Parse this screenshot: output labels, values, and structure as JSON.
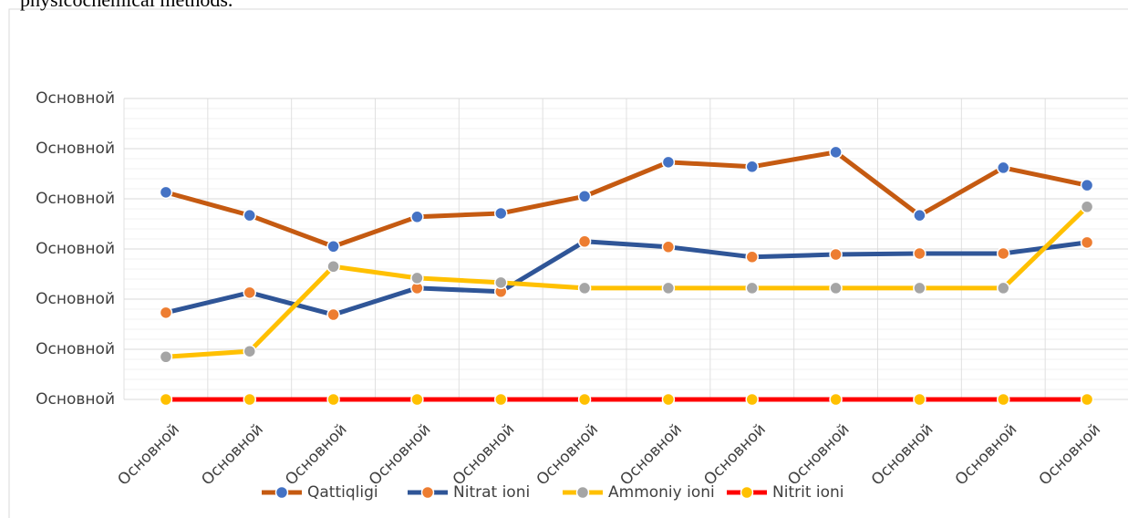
{
  "chart_data": {
    "type": "line",
    "caption_text": "physicochemical methods.",
    "categories": [
      "Основной",
      "Основной",
      "Основной",
      "Основной",
      "Основной",
      "Основной",
      "Основной",
      "Основной",
      "Основной",
      "Основной",
      "Основной",
      "Основной"
    ],
    "series": [
      {
        "name": "Qattiqligi",
        "color": "#c55a11",
        "marker_color": "#4472c4",
        "values": [
          4.13,
          3.67,
          3.05,
          3.64,
          3.71,
          4.05,
          4.73,
          4.64,
          4.93,
          3.67,
          4.62,
          4.27
        ]
      },
      {
        "name": "Nitrat ioni",
        "color": "#2f5597",
        "marker_color": "#ed7d31",
        "values": [
          1.73,
          2.13,
          1.69,
          2.22,
          2.15,
          3.15,
          3.04,
          2.84,
          2.89,
          2.91,
          2.91,
          3.13
        ]
      },
      {
        "name": "Ammoniy ioni",
        "color": "#ffc000",
        "marker_color": "#a5a5a5",
        "values": [
          0.85,
          0.96,
          2.65,
          2.42,
          2.33,
          2.22,
          2.22,
          2.22,
          2.22,
          2.22,
          2.22,
          3.84
        ]
      },
      {
        "name": "Nitrit ioni",
        "color": "#ff0000",
        "marker_color": "#ffc000",
        "values": [
          0,
          0,
          0,
          0,
          0,
          0,
          0,
          0,
          0,
          0,
          0,
          0
        ]
      }
    ],
    "ylim": [
      0,
      6
    ],
    "yticks": [
      {
        "value": 0,
        "label": "Основной"
      },
      {
        "value": 1,
        "label": "Основной"
      },
      {
        "value": 2,
        "label": "Основной"
      },
      {
        "value": 3,
        "label": "Основной"
      },
      {
        "value": 4,
        "label": "Основной"
      },
      {
        "value": 5,
        "label": "Основной"
      },
      {
        "value": 6,
        "label": "Основной"
      }
    ],
    "grid": true,
    "minor_grid_divisions": 5,
    "legend": "bottom"
  }
}
